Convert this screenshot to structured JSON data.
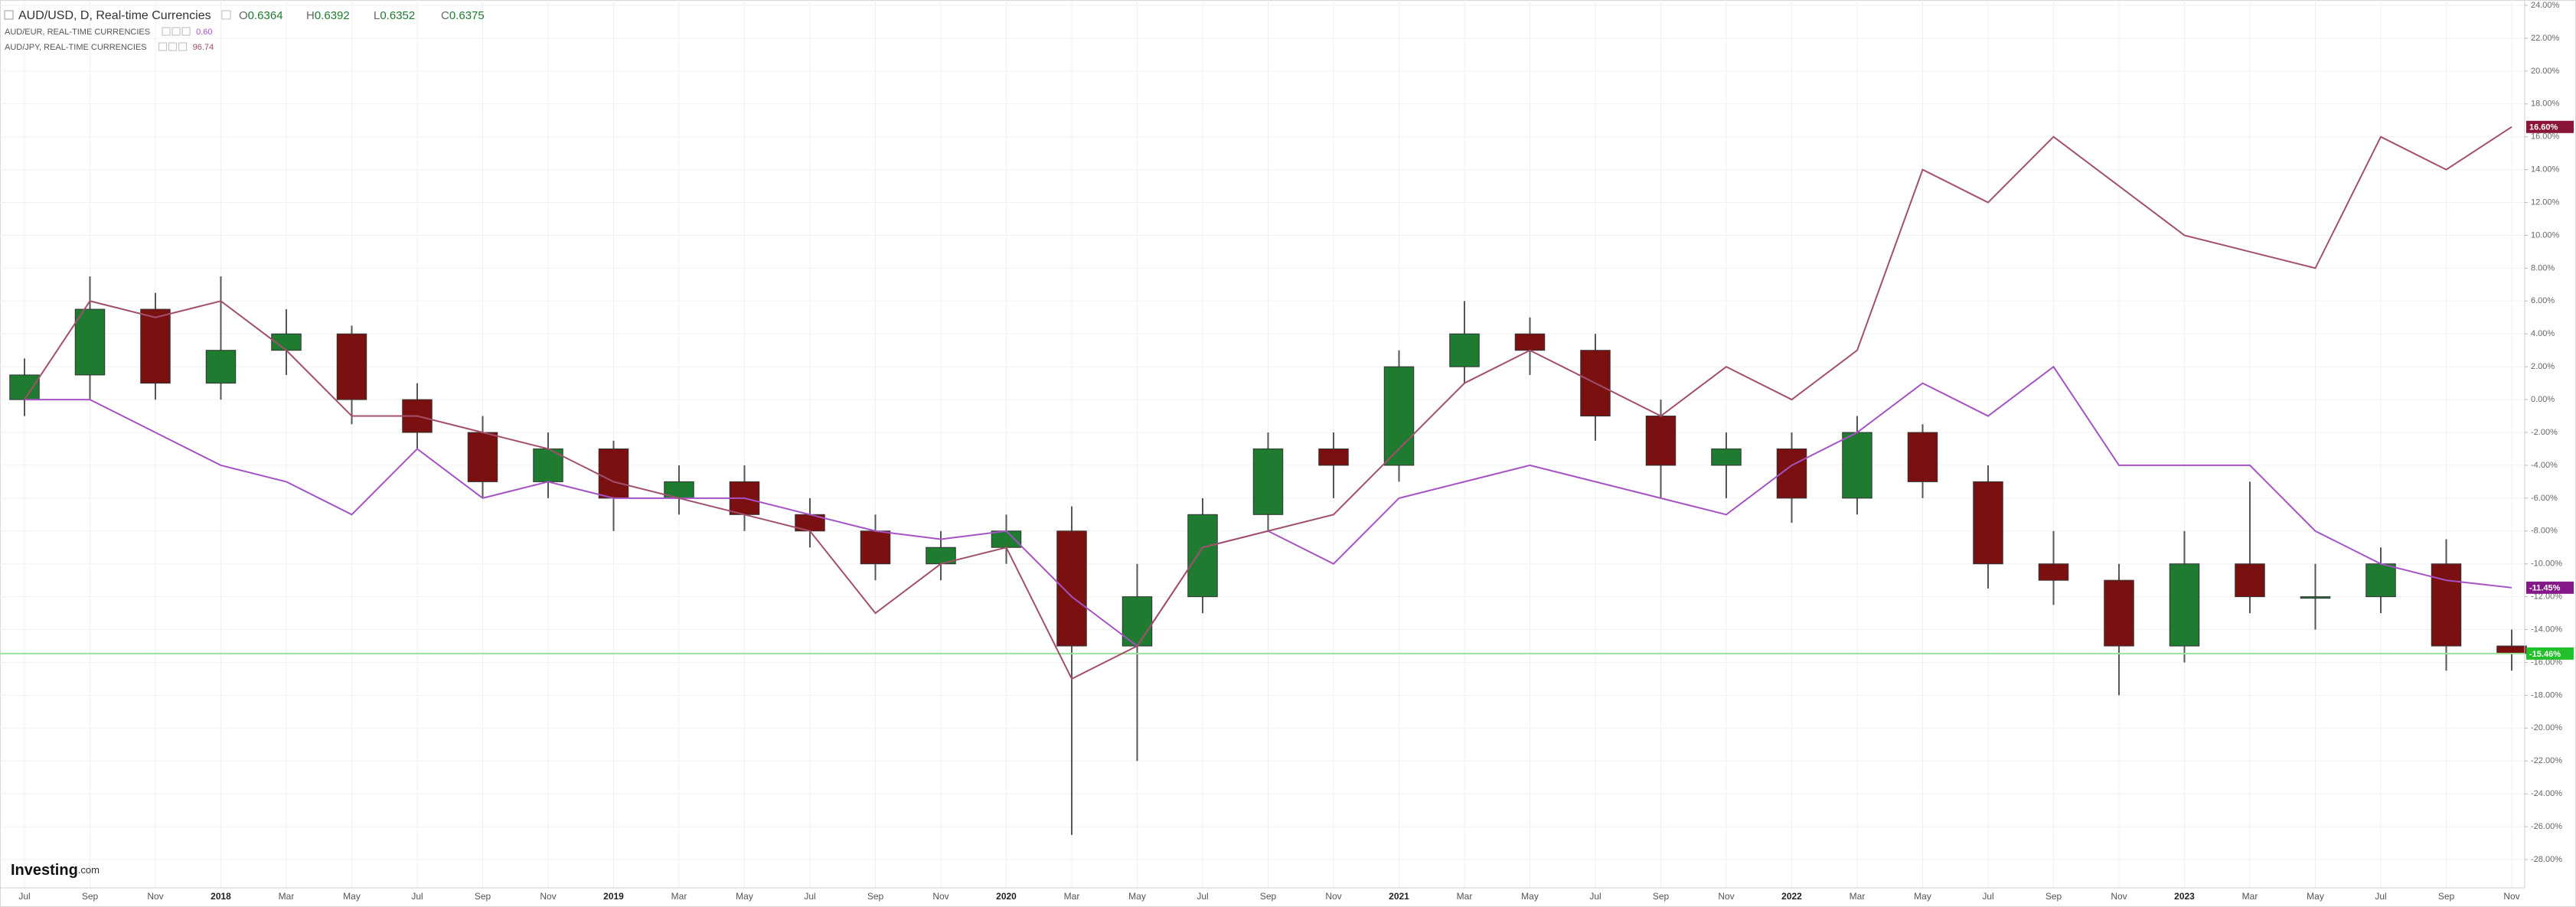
{
  "chart_data": {
    "type": "candlestick",
    "title": "AUD/USD, D, Real-time Currencies",
    "ohlc": [
      {
        "label": "O",
        "value": "0.6364"
      },
      {
        "label": "H",
        "value": "0.6392"
      },
      {
        "label": "L",
        "value": "0.6352"
      },
      {
        "label": "C",
        "value": "0.6375"
      }
    ],
    "categories": [
      "Jul",
      "Sep",
      "Nov",
      "2018",
      "Mar",
      "May",
      "Jul",
      "Sep",
      "Nov",
      "2019",
      "Mar",
      "May",
      "Jul",
      "Sep",
      "Nov",
      "2020",
      "Mar",
      "May",
      "Jul",
      "Sep",
      "Nov",
      "2021",
      "Mar",
      "May",
      "Jul",
      "Sep",
      "Nov",
      "2022",
      "Mar",
      "May",
      "Jul",
      "Sep",
      "Nov",
      "2023",
      "Mar",
      "May",
      "Jul",
      "Sep",
      "Nov"
    ],
    "series": [
      {
        "name": "AUD/USD",
        "type": "candlestick",
        "up_color": "#1e7b30",
        "down_color": "#7b1010",
        "badge_color": "#22c02a",
        "price_line_color": "#9be39b",
        "last_label": "-15.46%",
        "open": [
          0,
          1.5,
          5.5,
          1,
          3,
          4,
          0,
          -2,
          -5,
          -3,
          -6,
          -5,
          -7,
          -8,
          -10,
          -9,
          -8,
          -15,
          -12,
          -7,
          -3,
          -4,
          2,
          4,
          3,
          -1,
          -4,
          -3,
          -6,
          -2,
          -5,
          -10,
          -11,
          -15,
          -10,
          -12,
          -12,
          -10,
          -15
        ],
        "high": [
          2.5,
          7.5,
          6.5,
          7.5,
          5.5,
          4.5,
          1,
          -1,
          -2,
          -2.5,
          -4,
          -4,
          -6,
          -7,
          -8,
          -7,
          -6.5,
          -10,
          -6,
          -2,
          -2,
          3,
          6,
          5,
          4,
          0,
          -2,
          -2,
          -1,
          -1.5,
          -4,
          -8,
          -10,
          -8,
          -5,
          -10,
          -9,
          -8.5,
          -14
        ],
        "low": [
          -1,
          0,
          0,
          0,
          1.5,
          -1.5,
          -3,
          -6,
          -6,
          -8,
          -7,
          -8,
          -9,
          -11,
          -11,
          -10,
          -26.5,
          -22,
          -13,
          -8,
          -6,
          -5,
          1,
          1.5,
          -2.5,
          -6,
          -6,
          -7.5,
          -7,
          -6,
          -11.5,
          -12.5,
          -18,
          -16,
          -13,
          -14,
          -13,
          -16.5,
          -16.5
        ],
        "close": [
          1.5,
          5.5,
          1,
          3,
          4,
          0,
          -2,
          -5,
          -3,
          -6,
          -5,
          -7,
          -8,
          -10,
          -9,
          -8,
          -15,
          -12,
          -7,
          -3,
          -4,
          2,
          4,
          3,
          -1,
          -4,
          -3,
          -6,
          -2,
          -5,
          -10,
          -11,
          -15,
          -10,
          -12,
          -12,
          -10,
          -15,
          -15.46
        ]
      },
      {
        "name": "AUD/EUR, REAL-TIME CURRENCIES",
        "type": "line",
        "color": "#a552c4",
        "badge_color": "#86198a",
        "legend_value": "0.60",
        "last_label": "-11.45%",
        "values": [
          0,
          0,
          -2,
          -4,
          -5,
          -7,
          -3,
          -6,
          -5,
          -6,
          -6,
          -6,
          -7,
          -8,
          -8.5,
          -8,
          -12,
          -15,
          -9,
          -8,
          -10,
          -6,
          -5,
          -4,
          -5,
          -6,
          -7,
          -4,
          -2,
          1,
          -1,
          2,
          -4,
          -4,
          -4,
          -8,
          -10,
          -11,
          -11.45
        ]
      },
      {
        "name": "AUD/JPY, REAL-TIME CURRENCIES",
        "type": "line",
        "color": "#a24f6c",
        "badge_color": "#8b1538",
        "legend_value": "96.74",
        "last_label": "16.60%",
        "values": [
          0,
          6,
          5,
          6,
          3,
          -1,
          -1,
          -2,
          -3,
          -5,
          -6,
          -7,
          -8,
          -13,
          -10,
          -9,
          -17,
          -15,
          -9,
          -8,
          -7,
          -3,
          1,
          3,
          1,
          -1,
          2,
          0,
          3,
          14,
          12,
          16,
          13,
          10,
          9,
          8,
          16,
          14,
          16.6
        ]
      }
    ],
    "ylim": [
      -28,
      24
    ],
    "yticks": [
      {
        "value": 24,
        "label": "24.00%"
      },
      {
        "value": 22,
        "label": "22.00%"
      },
      {
        "value": 20,
        "label": "20.00%"
      },
      {
        "value": 18,
        "label": "18.00%"
      },
      {
        "value": 16,
        "label": "16.00%"
      },
      {
        "value": 14,
        "label": "14.00%"
      },
      {
        "value": 12,
        "label": "12.00%"
      },
      {
        "value": 10,
        "label": "10.00%"
      },
      {
        "value": 8,
        "label": "8.00%"
      },
      {
        "value": 6,
        "label": "6.00%"
      },
      {
        "value": 4,
        "label": "4.00%"
      },
      {
        "value": 2,
        "label": "2.00%"
      },
      {
        "value": 0,
        "label": "0.00%"
      },
      {
        "value": -2,
        "label": "-2.00%"
      },
      {
        "value": -4,
        "label": "-4.00%"
      },
      {
        "value": -6,
        "label": "-6.00%"
      },
      {
        "value": -8,
        "label": "-8.00%"
      },
      {
        "value": -10,
        "label": "-10.00%"
      },
      {
        "value": -12,
        "label": "-12.00%"
      },
      {
        "value": -14,
        "label": "-14.00%"
      },
      {
        "value": -16,
        "label": "-16.00%"
      },
      {
        "value": -18,
        "label": "-18.00%"
      },
      {
        "value": -20,
        "label": "-20.00%"
      },
      {
        "value": -22,
        "label": "-22.00%"
      },
      {
        "value": -24,
        "label": "-24.00%"
      },
      {
        "value": -26,
        "label": "-26.00%"
      },
      {
        "value": -28,
        "label": "-28.00%"
      }
    ],
    "grid": true
  },
  "watermark": {
    "brand": "Investing",
    "suffix": ".com"
  }
}
